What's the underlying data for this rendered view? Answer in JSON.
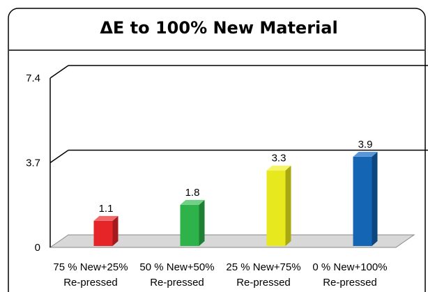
{
  "chart_data": {
    "type": "bar",
    "title": "ΔE to 100% New Material",
    "xlabel": "",
    "ylabel": "",
    "ylim": [
      0,
      7.4
    ],
    "yticks": [
      "7.4",
      "3.7",
      "0"
    ],
    "grid": true,
    "legend": "none",
    "categories": [
      [
        "75 % New+25%",
        "Re-pressed"
      ],
      [
        "50 % New+50%",
        "Re-pressed"
      ],
      [
        "25 % New+75%",
        "Re-pressed"
      ],
      [
        "0 % New+100%",
        "Re-pressed"
      ]
    ],
    "values": [
      1.1,
      1.8,
      3.3,
      3.9
    ],
    "value_labels": [
      "1.1",
      "1.8",
      "3.3",
      "3.9"
    ],
    "colors": [
      "#e52527",
      "#2db34a",
      "#e8e81e",
      "#1565b5"
    ],
    "side_colors": [
      "#a51a1c",
      "#1f7f35",
      "#a8a813",
      "#0e467f"
    ],
    "top_colors": [
      "#f06a6b",
      "#6fd086",
      "#f5f56a",
      "#5a96d6"
    ]
  }
}
